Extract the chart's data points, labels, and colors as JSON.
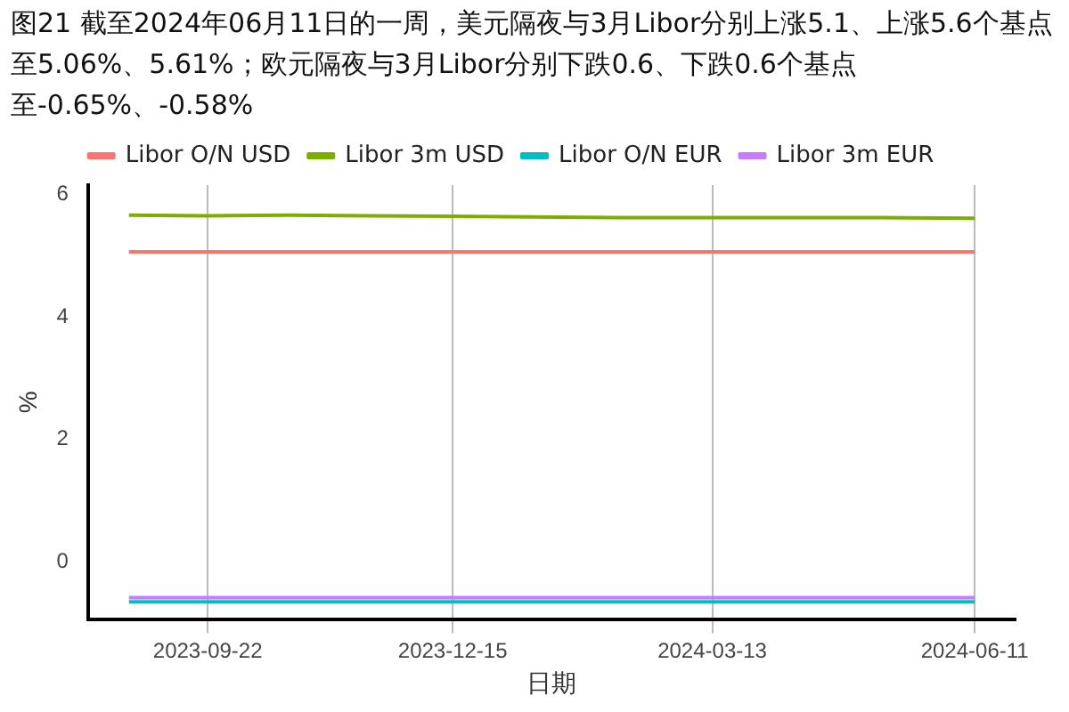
{
  "chart_data": {
    "type": "line",
    "title": "图21  截至2024年06月11日的一周，美元隔夜与3月Libor分别上涨5.1、上涨5.6个基点至5.06%、5.61%；欧元隔夜与3月Libor分别下跌0.6、下跌0.6个基点至-0.65%、-0.58%",
    "xlabel": "日期",
    "ylabel": "%",
    "x": [
      "2023-08-26",
      "2023-09-22",
      "2023-10-20",
      "2023-11-17",
      "2023-12-15",
      "2024-01-12",
      "2024-02-09",
      "2024-03-13",
      "2024-04-10",
      "2024-05-10",
      "2024-06-11"
    ],
    "series": [
      {
        "name": "Libor O/N USD",
        "color": "#f8766d",
        "values": [
          5.06,
          5.06,
          5.06,
          5.06,
          5.06,
          5.06,
          5.06,
          5.06,
          5.06,
          5.06,
          5.06
        ]
      },
      {
        "name": "Libor 3m USD",
        "color": "#7cae00",
        "values": [
          5.66,
          5.65,
          5.66,
          5.65,
          5.64,
          5.63,
          5.62,
          5.62,
          5.62,
          5.62,
          5.61
        ]
      },
      {
        "name": "Libor O/N EUR",
        "color": "#00bfc4",
        "values": [
          -0.65,
          -0.65,
          -0.65,
          -0.65,
          -0.65,
          -0.65,
          -0.65,
          -0.65,
          -0.65,
          -0.65,
          -0.65
        ]
      },
      {
        "name": "Libor 3m EUR",
        "color": "#c77cff",
        "values": [
          -0.58,
          -0.58,
          -0.58,
          -0.58,
          -0.58,
          -0.58,
          -0.58,
          -0.58,
          -0.58,
          -0.58,
          -0.58
        ]
      }
    ],
    "xlim": [
      "2023-08-12",
      "2024-06-25"
    ],
    "xticks": [
      "2023-09-22",
      "2023-12-15",
      "2024-03-13",
      "2024-06-11"
    ],
    "ylim": [
      -0.93,
      6.15
    ],
    "yticks": [
      0,
      2,
      4,
      6
    ],
    "grid": "x",
    "legend": "top"
  }
}
